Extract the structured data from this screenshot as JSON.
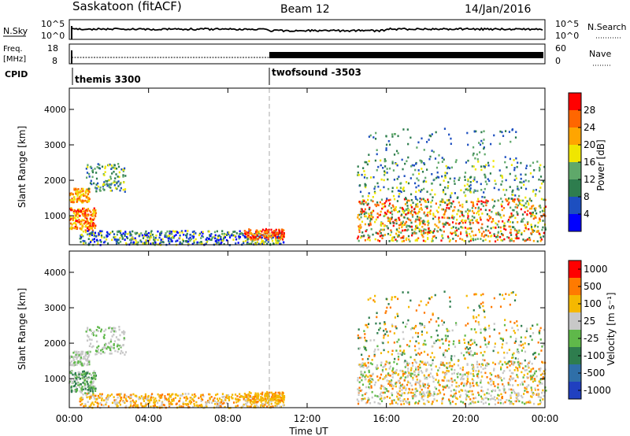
{
  "header": {
    "station": "Saskatoon (fitACF)",
    "beam": "Beam 12",
    "date": "14/Jan/2016"
  },
  "top_panels": {
    "nsky_label": "N.Sky",
    "nsky_ticks": [
      "10^5",
      "10^0"
    ],
    "nsearch_label": "N.Search",
    "nsearch_ticks": [
      "10^5",
      "10^0"
    ],
    "freq_label_1": "Freq.",
    "freq_label_2": "[MHz]",
    "freq_ticks": [
      "18",
      "8"
    ],
    "nave_label": "Nave",
    "nave_ticks": [
      "60",
      "0"
    ],
    "cpid_label": "CPID",
    "cpid_segments": [
      {
        "name": "themis 3300",
        "start_hour": 0
      },
      {
        "name": "twofsound -3503",
        "start_hour": 10
      }
    ]
  },
  "chart_data": [
    {
      "type": "heatmap",
      "title": "",
      "xlabel": "",
      "ylabel": "Slant Range [km]",
      "xlim": [
        0,
        24
      ],
      "ylim": [
        180,
        4600
      ],
      "x_ticks": [
        "00:00",
        "04:00",
        "08:00",
        "12:00",
        "16:00",
        "20:00",
        "00:00"
      ],
      "y_ticks": [
        1000,
        2000,
        3000,
        4000
      ],
      "colorbar_label": "Power [dB]",
      "colorbar_ticks": [
        "28",
        "24",
        "20",
        "16",
        "12",
        "8",
        "4"
      ],
      "colorbar_colors": [
        "#0000ff",
        "#1d4fc0",
        "#2e7d4e",
        "#5fa86a",
        "#f0e600",
        "#ffa500",
        "#ff6600",
        "#ff0000"
      ],
      "regions": [
        {
          "x0": 0.0,
          "x1": 2.8,
          "y0": 550,
          "y1": 2600,
          "level": "medium-high"
        },
        {
          "x0": 0.0,
          "x1": 10.8,
          "y0": 250,
          "y1": 650,
          "level": "medium"
        },
        {
          "x0": 14.5,
          "x1": 24.0,
          "y0": 300,
          "y1": 3500,
          "level": "medium-high"
        }
      ]
    },
    {
      "type": "heatmap",
      "title": "",
      "xlabel": "Time UT",
      "ylabel": "Slant Range [km]",
      "xlim": [
        0,
        24
      ],
      "ylim": [
        180,
        4600
      ],
      "x_ticks": [
        "00:00",
        "04:00",
        "08:00",
        "12:00",
        "16:00",
        "20:00",
        "00:00"
      ],
      "y_ticks": [
        1000,
        2000,
        3000,
        4000
      ],
      "colorbar_label": "Velocity [m s⁻¹]",
      "colorbar_ticks": [
        "1000",
        "500",
        "100",
        "25",
        "-25",
        "-100",
        "-500",
        "-1000"
      ],
      "colorbar_colors": [
        "#2040c0",
        "#2f6fa8",
        "#2e7d4e",
        "#5fb84a",
        "#c8c8c8",
        "#f5b800",
        "#ff7a00",
        "#ff0000"
      ]
    }
  ]
}
